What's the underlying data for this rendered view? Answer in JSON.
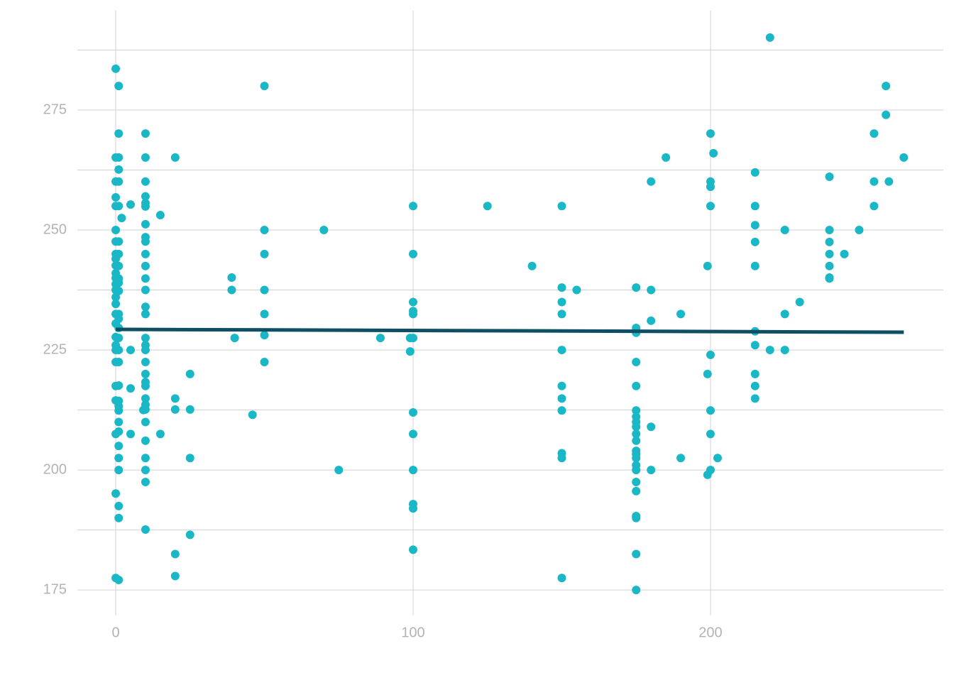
{
  "chart_data": {
    "type": "scatter",
    "xlim": [
      -12.9,
      278.3
    ],
    "ylim": [
      169.7,
      295.7
    ],
    "xticks": [
      0,
      100,
      200
    ],
    "yticks": [
      175,
      200,
      225,
      250,
      275
    ],
    "y_minor_grid": [
      187.5,
      212.5,
      237.5,
      262.5,
      287.5
    ],
    "grid": true,
    "color": "#1ab7c6",
    "x": [
      0,
      0,
      0,
      0,
      0,
      0,
      0,
      0,
      0,
      0,
      0,
      0,
      0,
      0,
      0,
      0,
      0,
      0,
      0,
      0,
      0,
      0,
      0,
      0,
      0,
      0,
      0,
      1,
      1,
      1,
      1,
      1,
      1,
      1,
      1,
      1,
      1,
      1,
      1,
      1,
      1,
      1,
      1,
      1,
      1,
      1,
      1,
      1,
      1,
      1,
      1,
      1,
      1,
      1,
      1,
      1,
      1,
      2,
      5,
      5,
      5,
      5,
      10,
      10,
      10,
      10,
      10,
      10,
      10,
      10,
      10,
      10,
      10,
      10,
      10,
      10,
      10,
      10,
      10,
      10,
      10,
      10,
      10,
      10,
      10,
      10,
      10,
      10,
      10,
      10,
      10,
      10,
      10,
      9.3,
      15,
      15,
      20,
      20,
      20,
      20,
      20,
      25,
      25,
      25,
      25,
      39,
      39,
      40,
      46,
      50,
      50,
      50,
      50,
      50,
      50,
      50,
      70,
      75,
      89,
      99,
      99,
      100,
      100,
      100,
      100,
      100,
      100,
      100,
      100,
      100,
      100,
      100,
      100,
      125,
      140,
      150,
      150,
      150,
      150,
      150,
      150,
      150,
      150,
      150,
      150,
      150,
      155,
      175,
      175,
      175,
      175,
      175,
      175,
      175,
      175,
      175,
      175,
      175,
      175,
      175,
      175,
      175,
      175,
      175,
      175,
      175,
      175,
      175,
      175,
      180,
      180,
      180,
      180,
      180,
      185,
      190,
      190,
      199,
      199,
      199,
      200,
      200,
      200,
      200,
      200,
      200,
      200,
      200,
      201,
      202.4,
      215,
      215,
      215,
      215,
      215,
      215,
      215,
      215,
      215,
      215,
      220,
      220,
      225,
      225,
      225,
      230,
      240,
      240,
      240,
      240,
      240,
      240,
      240,
      245,
      250,
      255,
      255,
      255,
      259,
      259,
      260,
      265
    ],
    "y": [
      283.6,
      265.1,
      260.1,
      256.8,
      255,
      250,
      247.6,
      245,
      244,
      242.6,
      241,
      240,
      238.7,
      237.5,
      236,
      234.6,
      232.5,
      230.5,
      227.7,
      226,
      225,
      222.5,
      217.5,
      214.5,
      207.5,
      195.1,
      177.5,
      280,
      270.1,
      265.1,
      262.6,
      260.1,
      255,
      247.6,
      245,
      242.5,
      239.9,
      239,
      237.3,
      232.5,
      231.5,
      229.6,
      227.5,
      225,
      222.5,
      217.6,
      214.4,
      213.3,
      212.4,
      210,
      208,
      205,
      202.5,
      200,
      192.5,
      190,
      177.1,
      252.5,
      255.3,
      225,
      217,
      207.5,
      270.1,
      265.1,
      260.1,
      257,
      255.6,
      254.9,
      251.2,
      248.5,
      247.6,
      245,
      242.5,
      239.9,
      237.5,
      234,
      232.5,
      227.5,
      226,
      225,
      222.5,
      220,
      218.3,
      217.5,
      214.9,
      213.6,
      212.6,
      210,
      206.1,
      202.5,
      200,
      197.5,
      187.6,
      212.5,
      253.1,
      207.5,
      265.1,
      214.9,
      212.6,
      182.5,
      177.9,
      220,
      212.6,
      202.5,
      186.5,
      240.1,
      237.5,
      227.5,
      211.5,
      280,
      250,
      245,
      237.5,
      232.5,
      228.1,
      222.5,
      250,
      200,
      227.5,
      227.5,
      224.7,
      255,
      245,
      235,
      233.1,
      232.5,
      227.5,
      212,
      207.5,
      200,
      192.9,
      192,
      183.4,
      255,
      242.5,
      255,
      238,
      235,
      232.5,
      225,
      217.5,
      214.9,
      212.4,
      203.5,
      202.5,
      177.5,
      237.5,
      238,
      229.6,
      228.6,
      222.5,
      217.5,
      212.4,
      211.1,
      210,
      209,
      207.5,
      206.1,
      204,
      203.3,
      202.5,
      201,
      200,
      197.5,
      195.6,
      190.4,
      190,
      182.5,
      175,
      260.1,
      237.5,
      231.1,
      209,
      200,
      265.1,
      232.5,
      202.5,
      242.5,
      220,
      199,
      270.1,
      260.1,
      259,
      255,
      224,
      212.4,
      207.5,
      200,
      266,
      202.5,
      262,
      255,
      251,
      247.5,
      242.5,
      228.9,
      226,
      220,
      217.5,
      214.9,
      290.1,
      225,
      250,
      232.5,
      225,
      235,
      261.1,
      250,
      247.5,
      245,
      242.5,
      240.1,
      239.9,
      245,
      250,
      270.1,
      260.1,
      255,
      280,
      274,
      260.1,
      265.1
    ],
    "trend_line": {
      "color": "#0e4f63",
      "x": [
        0,
        265
      ],
      "y": [
        229.3,
        228.7
      ]
    }
  }
}
